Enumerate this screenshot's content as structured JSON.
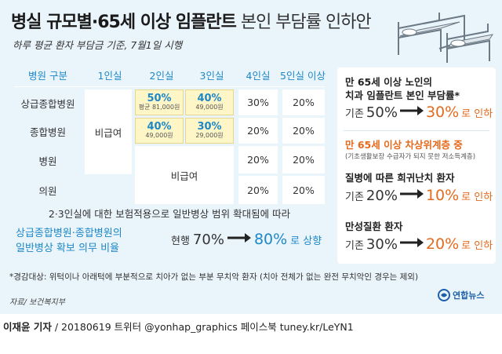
{
  "header": {
    "title_bold": "병실 규모별·65세 이상 임플란트",
    "title_light": " 본인 부담률 인하안",
    "subtitle": "하루 평균 환자 부담금 기준, 7월1일 시행"
  },
  "table": {
    "headers": [
      "병원 구분",
      "1인실",
      "2인실",
      "3인실",
      "4인실",
      "5인실 이상"
    ],
    "rows": [
      {
        "name": "상급종합병원",
        "room2": "50%",
        "room2_sub": "평균 81,000원",
        "room3": "40%",
        "room3_sub": "49,000원",
        "room4": "30%",
        "room5": "20%"
      },
      {
        "name": "종합병원",
        "room2": "40%",
        "room2_sub": "49,000원",
        "room3": "30%",
        "room3_sub": "29,000원",
        "room4": "20%",
        "room5": "20%"
      },
      {
        "name": "병원",
        "room4": "20%",
        "room5": "20%"
      },
      {
        "name": "의원",
        "room4": "20%",
        "room5": "20%"
      }
    ],
    "uninsured_1": "비급여",
    "uninsured_2": "비급여"
  },
  "expansion": {
    "note": "2·3인실에 대한 보험적용으로 일반병상 범위 확대됨에 따라",
    "policy_line1": "상급종합병원·종합병원의",
    "policy_line2": "일반병상 확보 의무 비율",
    "current_label": "현행",
    "from": "70%",
    "to": "80%",
    "to_suffix": "로 상향"
  },
  "side": {
    "title1": "만 65세 이상 노인의",
    "title2": "치과 임플란트 본인 부담률*",
    "implant": {
      "prefix": "기존",
      "from": "50%",
      "to": "30%",
      "suffix": "로 인하"
    },
    "near_poor_title": "만 65세 이상 차상위계층 중",
    "near_poor_sub": "(기초생활보장 수급자가 되지 못한 저소득계층)",
    "rare_title": "질병에 따른 희귀난치 환자",
    "rare": {
      "prefix": "기존",
      "from": "20%",
      "to": "10%",
      "suffix": "로 인하"
    },
    "chronic_title": "만성질환 환자",
    "chronic": {
      "prefix": "기존",
      "from": "30%",
      "to": "20%",
      "suffix": "로 인하"
    }
  },
  "footnote": "*경감대상: 위턱이나 아래턱에 부분적으로 치아가 없는 부분 무치악 환자 (치아 전체가 없는 완전 무치악인 경우는 제외)",
  "source": "자료/ 보건복지부",
  "logo_text": "연합뉴스",
  "credit": {
    "author": "이재윤 기자",
    "rest": " / 20180619   트위터 @yonhap_graphics   페이스북 tuney.kr/LeYN1"
  },
  "colors": {
    "accent_blue": "#1e88c7",
    "accent_orange": "#e46a1e",
    "panel_bg": "#eaf4fb",
    "highlight": "#fff6c8"
  }
}
